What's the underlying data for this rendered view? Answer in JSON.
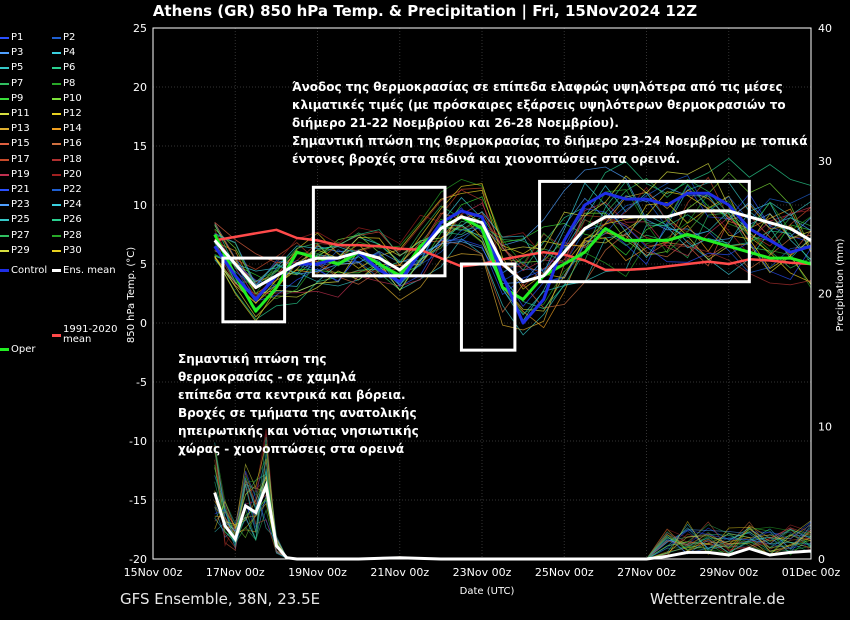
{
  "title": "Athens  (GR)  850 hPa Temp. & Precipitation | Fri, 15Nov2024 12Z",
  "footer": {
    "model": "GFS Ensemble, 38N, 23.5E",
    "site": "Wetterzentrale.de"
  },
  "colors": {
    "control": "#1e2ee6",
    "ens_mean": "#ffffff",
    "climate_mean": "#ff4a4a",
    "oper": "#22ee22",
    "highlight_box": "#ffffff"
  },
  "legend": [
    {
      "label": "P1",
      "color": "#2a50ff"
    },
    {
      "label": "P2",
      "color": "#1f5fd0"
    },
    {
      "label": "P3",
      "color": "#4fa0ff"
    },
    {
      "label": "P4",
      "color": "#3ad0e0"
    },
    {
      "label": "P5",
      "color": "#36c8c8"
    },
    {
      "label": "P6",
      "color": "#2ad090"
    },
    {
      "label": "P7",
      "color": "#30c060"
    },
    {
      "label": "P8",
      "color": "#28a828"
    },
    {
      "label": "P9",
      "color": "#3ae03a"
    },
    {
      "label": "P10",
      "color": "#7de23a"
    },
    {
      "label": "P11",
      "color": "#d8e040"
    },
    {
      "label": "P12",
      "color": "#e8d020"
    },
    {
      "label": "P13",
      "color": "#e0b030"
    },
    {
      "label": "P14",
      "color": "#f0a020"
    },
    {
      "label": "P15",
      "color": "#e06040"
    },
    {
      "label": "P16",
      "color": "#d07040"
    },
    {
      "label": "P17",
      "color": "#c84a2a"
    },
    {
      "label": "P18",
      "color": "#b03030"
    },
    {
      "label": "P19",
      "color": "#c03050"
    },
    {
      "label": "P20",
      "color": "#a02020"
    },
    {
      "label": "P21",
      "color": "#2a50ff"
    },
    {
      "label": "P22",
      "color": "#1f5fd0"
    },
    {
      "label": "P23",
      "color": "#4fa0ff"
    },
    {
      "label": "P24",
      "color": "#3ad0e0"
    },
    {
      "label": "P25",
      "color": "#36c8c8"
    },
    {
      "label": "P26",
      "color": "#2ad090"
    },
    {
      "label": "P27",
      "color": "#30c060"
    },
    {
      "label": "P28",
      "color": "#28a828"
    },
    {
      "label": "P29",
      "color": "#d8e040"
    },
    {
      "label": "P30",
      "color": "#e8d020"
    },
    {
      "label": "Control",
      "color": "#1e2ee6"
    },
    {
      "label": "Ens. mean",
      "color": "#ffffff"
    },
    {
      "label": "Oper",
      "color": "#22ee22"
    },
    {
      "label": "1991-2020\nmean",
      "color": "#ff4a4a"
    }
  ],
  "annotations": {
    "top": [
      "Άνοδος της θερμοκρασίας σε επίπεδα ελαφρώς υψηλότερα από τις μέσες",
      "κλιματικές τιμές (με πρόσκαιρες εξάρσεις υψηλότερων θερμοκρασιών το",
      "διήμερο 21-22 Νοεμβρίου και 26-28 Νοεμβρίου).",
      "Σημαντική πτώση της θερμοκρασίας το διήμερο 23-24 Νοεμβρίου με τοπικά",
      "έντονες βροχές στα πεδινά και χιονοπτώσεις στα ορεινά."
    ],
    "left": [
      "Σημαντική πτώση της",
      "θερμοκρασίας - σε χαμηλά",
      "επίπεδα στα κεντρικά και βόρεια.",
      "Βροχές σε τμήματα της ανατολικής",
      "ηπειρωτικής και νότιας νησιωτικής",
      "χώρας - χιονοπτώσεις στα ορεινά"
    ]
  },
  "chart_data": {
    "type": "line",
    "xlabel": "Date (UTC)",
    "ylabel": "850 hPa Temp. (°C)",
    "y2label": "Precipitation (mm)",
    "ylim": [
      -20,
      25
    ],
    "y2lim": [
      0,
      40
    ],
    "yticks": [
      -20,
      -15,
      -10,
      -5,
      0,
      5,
      10,
      15,
      20,
      25
    ],
    "y2ticks": [
      0,
      10,
      20,
      30,
      40
    ],
    "xlim": [
      0,
      16
    ],
    "x_tick_labels": [
      "15Nov 00z",
      "17Nov 00z",
      "19Nov 00z",
      "21Nov 00z",
      "23Nov 00z",
      "25Nov 00z",
      "27Nov 00z",
      "29Nov 00z",
      "01Dec 00z"
    ],
    "x_unit": "days from 15Nov 00z",
    "series": [
      {
        "name": "Ens. mean",
        "x": [
          1.5,
          2,
          2.5,
          3,
          3.5,
          4,
          4.5,
          5,
          5.5,
          6,
          6.5,
          7,
          7.5,
          8,
          8.5,
          9,
          9.5,
          10,
          10.5,
          11,
          11.5,
          12,
          12.5,
          13,
          13.5,
          14,
          14.5,
          15,
          15.5,
          16
        ],
        "y": [
          7,
          5,
          3,
          4,
          5,
          5.5,
          5.5,
          6,
          5.5,
          4.5,
          6,
          8,
          9,
          8.5,
          5,
          3.5,
          4,
          6,
          8,
          9,
          9,
          9,
          9,
          9.5,
          9.5,
          9.5,
          9,
          8.5,
          8,
          7
        ]
      },
      {
        "name": "Control",
        "x": [
          1.5,
          2,
          2.5,
          3,
          3.5,
          4,
          4.5,
          5,
          5.5,
          6,
          6.5,
          7,
          7.5,
          8,
          8.5,
          9,
          9.5,
          10,
          10.5,
          11,
          11.5,
          12,
          12.5,
          13,
          13.5,
          14,
          14.5,
          15,
          15.5,
          16
        ],
        "y": [
          6.5,
          4,
          2,
          4,
          5,
          5,
          5.5,
          6,
          4.5,
          3.5,
          6,
          8.5,
          9.5,
          9,
          4,
          0,
          2,
          7,
          10,
          11,
          10.5,
          10.5,
          10,
          11,
          11,
          10,
          8,
          7,
          6,
          6.5
        ]
      },
      {
        "name": "Oper",
        "x": [
          1.5,
          2,
          2.5,
          3,
          3.5,
          4,
          4.5,
          5,
          5.5,
          6,
          6.5,
          7,
          7.5,
          8,
          8.5,
          9,
          9.5,
          10,
          10.5,
          11,
          11.5,
          12,
          12.5,
          13,
          13.5,
          14,
          14.5,
          15,
          15.5,
          16
        ],
        "y": [
          7.5,
          4,
          1,
          3,
          6,
          5.5,
          5,
          6,
          5,
          4,
          6.5,
          8,
          9,
          8,
          3,
          2,
          4,
          5,
          6,
          8,
          7,
          7,
          7,
          7.5,
          7,
          6.5,
          6,
          5.5,
          5.5,
          5
        ]
      },
      {
        "name": "1991-2020 mean",
        "x": [
          1.5,
          2,
          2.5,
          3,
          3.5,
          4,
          4.5,
          5,
          5.5,
          6,
          6.5,
          7,
          7.5,
          8,
          8.5,
          9,
          9.5,
          10,
          10.5,
          11,
          11.5,
          12,
          12.5,
          13,
          13.5,
          14,
          14.5,
          15,
          15.5,
          16
        ],
        "y": [
          7,
          7.3,
          7.6,
          7.9,
          7.2,
          7,
          6.6,
          6.6,
          6.5,
          6.3,
          6.2,
          5.5,
          4.8,
          5,
          5.4,
          5.7,
          6,
          5.8,
          5.3,
          4.5,
          4.5,
          4.6,
          4.8,
          5,
          5.2,
          5,
          5.4,
          5.3,
          5.1,
          5
        ]
      }
    ],
    "precip_series": [
      {
        "name": "Ens. mean",
        "x": [
          1.5,
          1.75,
          2,
          2.25,
          2.5,
          2.75,
          3,
          3.25,
          3.5,
          4,
          5,
          6,
          7,
          8,
          9,
          10,
          11,
          12,
          12.5,
          13,
          13.5,
          14,
          14.5,
          15,
          15.5,
          16
        ],
        "y": [
          5,
          2.5,
          1.5,
          4,
          3.5,
          5.5,
          1,
          0.1,
          0,
          0,
          0,
          0.1,
          0,
          0,
          0,
          0,
          0,
          0,
          0.2,
          0.5,
          0.5,
          0.3,
          0.8,
          0.3,
          0.5,
          0.6
        ]
      }
    ],
    "highlight_boxes_x": [
      [
        1.7,
        3.2
      ],
      [
        3.9,
        7.1
      ],
      [
        7.5,
        8.8
      ],
      [
        9.4,
        14.5
      ]
    ],
    "highlight_boxes_y": [
      [
        0.1,
        5.5
      ],
      [
        4,
        11.5
      ],
      [
        -2.3,
        5
      ],
      [
        3.5,
        12
      ]
    ],
    "grid": true
  }
}
